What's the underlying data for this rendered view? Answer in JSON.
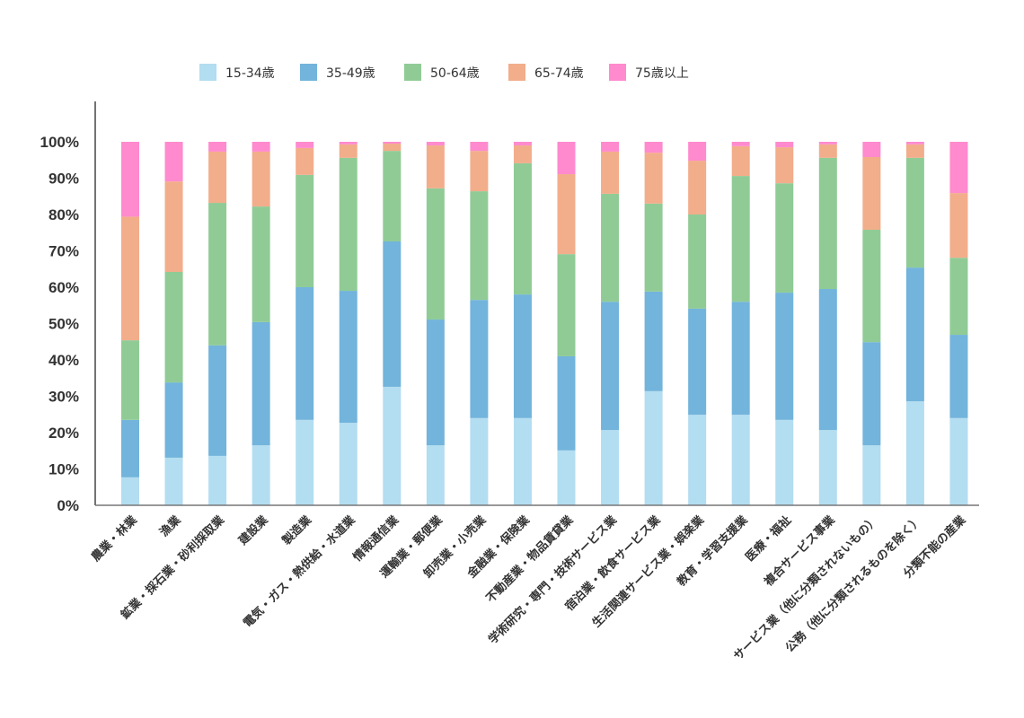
{
  "chart_data": {
    "type": "bar",
    "stacked": true,
    "title": "",
    "xlabel": "",
    "ylabel": "",
    "ylim": [
      0,
      100
    ],
    "y_ticks": [
      "0%",
      "10%",
      "20%",
      "30%",
      "40%",
      "50%",
      "60%",
      "70%",
      "80%",
      "90%",
      "100%"
    ],
    "grid": false,
    "legend_position": "top-center",
    "categories": [
      "農業・林業",
      "漁業",
      "鉱業・採石業・砂利採取業",
      "建設業",
      "製造業",
      "電気・ガス・熱供給・水道業",
      "情報通信業",
      "運輸業・郵便業",
      "卸売業・小売業",
      "金融業・保険業",
      "不動産業・物品賃貸業",
      "学術研究・専門・技術サービス業",
      "宿泊業・飲食サービス業",
      "生活関連サービス業・娯楽業",
      "教育・学習支援業",
      "医療・福祉",
      "複合サービス事業",
      "サービス業（他に分類されないもの）",
      "公務（他に分類されるものを除く）",
      "分類不能の産業"
    ],
    "series": [
      {
        "name": "15-34歳",
        "color": "#b3ddf0",
        "values": [
          7.7,
          13.1,
          13.6,
          16.5,
          23.5,
          22.7,
          32.6,
          16.5,
          24.0,
          24.0,
          15.1,
          20.7,
          31.4,
          24.9,
          24.9,
          23.5,
          20.7,
          16.5,
          28.6,
          24.0
        ]
      },
      {
        "name": "35-49歳",
        "color": "#72b4db",
        "values": [
          15.8,
          20.7,
          30.4,
          33.9,
          36.5,
          36.3,
          40.0,
          34.6,
          32.5,
          34.0,
          25.9,
          35.3,
          27.4,
          29.2,
          31.1,
          35.0,
          38.8,
          28.4,
          36.8,
          22.9
        ]
      },
      {
        "name": "50-64歳",
        "color": "#90cb96",
        "values": [
          21.9,
          30.4,
          39.2,
          31.8,
          30.9,
          36.6,
          24.9,
          36.1,
          29.9,
          36.1,
          28.1,
          29.7,
          24.2,
          25.9,
          34.6,
          30.1,
          36.1,
          30.9,
          30.2,
          21.2
        ]
      },
      {
        "name": "65-74歳",
        "color": "#f2ad8b",
        "values": [
          34.0,
          24.9,
          14.1,
          15.1,
          7.4,
          3.7,
          2.0,
          11.8,
          11.1,
          4.9,
          22.0,
          11.6,
          14.0,
          14.8,
          8.2,
          9.9,
          3.7,
          20.0,
          3.7,
          17.8
        ]
      },
      {
        "name": "75歳以上",
        "color": "#ff8ace",
        "values": [
          20.6,
          10.9,
          2.7,
          2.7,
          1.7,
          0.7,
          0.5,
          1.0,
          2.5,
          1.0,
          8.9,
          2.7,
          3.0,
          5.2,
          1.2,
          1.5,
          0.7,
          4.2,
          0.7,
          14.1
        ]
      }
    ]
  }
}
